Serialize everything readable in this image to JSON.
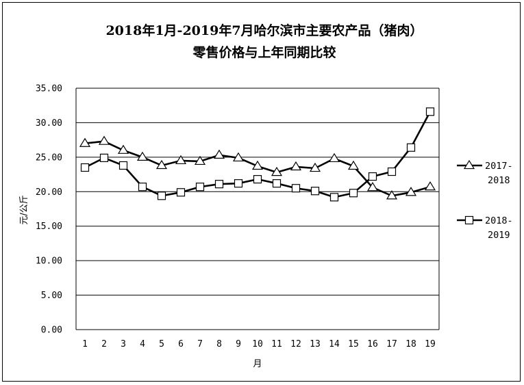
{
  "chart_data": {
    "type": "line",
    "title": [
      "2018年1月-2019年7月哈尔滨市主要农产品（猪肉）",
      "零售价格与上年同期比较"
    ],
    "xlabel": "月",
    "ylabel": "元/公斤",
    "ylim": [
      0,
      35
    ],
    "ytick_labels": [
      "0.00",
      "5.00",
      "10.00",
      "15.00",
      "20.00",
      "25.00",
      "30.00",
      "35.00"
    ],
    "categories": [
      "1",
      "2",
      "3",
      "4",
      "5",
      "6",
      "7",
      "8",
      "9",
      "10",
      "11",
      "12",
      "13",
      "14",
      "15",
      "16",
      "17",
      "18",
      "19"
    ],
    "grid": true,
    "legend_position": "right",
    "series": [
      {
        "name": [
          "2017-",
          "2018"
        ],
        "marker": "triangle",
        "values": [
          27.0,
          27.3,
          26.0,
          25.0,
          23.8,
          24.5,
          24.4,
          25.3,
          24.9,
          23.7,
          22.8,
          23.6,
          23.4,
          24.8,
          23.7,
          20.6,
          19.4,
          19.9,
          20.7
        ]
      },
      {
        "name": [
          "2018-",
          "2019"
        ],
        "marker": "square",
        "values": [
          23.5,
          24.9,
          23.8,
          20.7,
          19.4,
          19.9,
          20.7,
          21.1,
          21.2,
          21.8,
          21.2,
          20.5,
          20.1,
          19.2,
          19.8,
          22.2,
          22.9,
          26.4,
          31.6
        ]
      }
    ]
  }
}
